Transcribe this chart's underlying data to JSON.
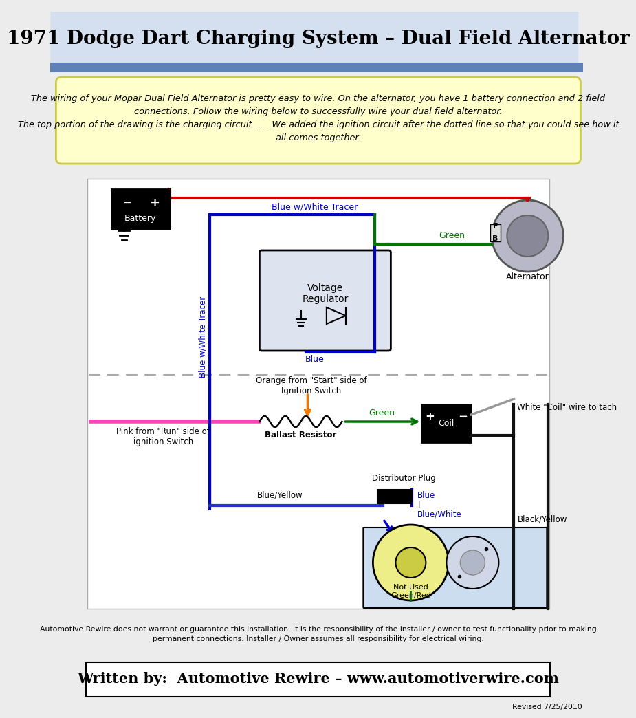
{
  "title": "1971 Dodge Dart Charging System – Dual Field Alternator",
  "title_bg": "#d4e0f0",
  "title_bar_color": "#6080b8",
  "desc_bg": "#ffffcc",
  "desc_border": "#cccc44",
  "description_text": "The wiring of your Mopar Dual Field Alternator is pretty easy to wire. On the alternator, you have 1 battery connection and 2 field\nconnections. Follow the wiring below to successfully wire your dual field alternator.\nThe top portion of the drawing is the charging circuit . . . We added the ignition circuit after the dotted line so that you could see how it\nall comes together.",
  "footer_disclaimer": "Automotive Rewire does not warrant or guarantee this installation. It is the responsibility of the installer / owner to test functionality prior to making\npermanent connections. Installer / Owner assumes all responsibility for electrical wiring.",
  "footer_credit": "Written by:  Automotive Rewire – www.automotiverwire.com",
  "revised": "Revised 7/25/2010",
  "bg_color": "#ececec",
  "diagram_bg": "#ffffff",
  "wire_red": "#cc0000",
  "wire_blue": "#0000cc",
  "wire_green": "#007700",
  "wire_pink": "#ff44bb",
  "wire_orange": "#ee7700",
  "wire_blue_yellow": "#2233cc",
  "wire_gray": "#999999",
  "wire_black": "#111111",
  "lw": 3.0
}
